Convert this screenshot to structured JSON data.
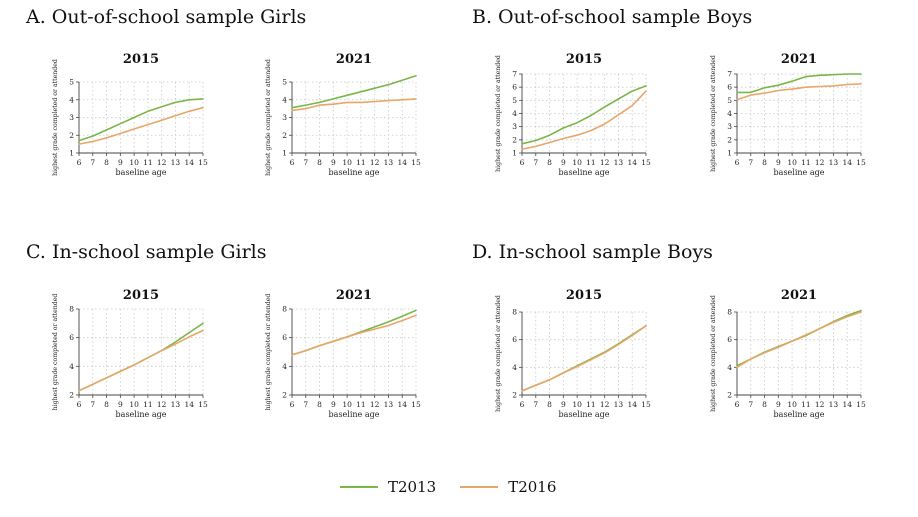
{
  "colors": {
    "T2013": "#7ab648",
    "T2016": "#e8a66a",
    "grid": "#c8c8c8",
    "axis": "#444444"
  },
  "axis_titles": {
    "y": "highest grade completed or attended",
    "x": "baseline age"
  },
  "legend": [
    {
      "label": "T2013",
      "color": "#7ab648"
    },
    {
      "label": "T2016",
      "color": "#e8a66a"
    }
  ],
  "sections": [
    {
      "title": "A. Out-of-school sample Girls"
    },
    {
      "title": "B. Out-of-school sample Boys"
    },
    {
      "title": "C. In-school sample Girls"
    },
    {
      "title": "D. In-school sample Boys"
    }
  ],
  "chart_data": [
    {
      "type": "line",
      "section": "A. Out-of-school sample Girls",
      "title": "2015",
      "xlabel": "baseline age",
      "ylabel": "highest grade completed or attended",
      "x": [
        6,
        7,
        8,
        9,
        10,
        11,
        12,
        13,
        14,
        15
      ],
      "xlim": [
        6,
        15
      ],
      "y_ticks": [
        1,
        2,
        3,
        4,
        5
      ],
      "ylim": [
        1,
        5
      ],
      "grid": true,
      "series": [
        {
          "name": "T2013",
          "values": [
            1.7,
            1.95,
            2.3,
            2.65,
            3.0,
            3.35,
            3.6,
            3.85,
            4.0,
            4.05
          ]
        },
        {
          "name": "T2016",
          "values": [
            1.5,
            1.65,
            1.85,
            2.1,
            2.35,
            2.6,
            2.85,
            3.1,
            3.35,
            3.55
          ]
        }
      ]
    },
    {
      "type": "line",
      "section": "A. Out-of-school sample Girls",
      "title": "2021",
      "xlabel": "baseline age",
      "ylabel": "highest grade completed or attended",
      "x": [
        6,
        7,
        8,
        9,
        10,
        11,
        12,
        13,
        14,
        15
      ],
      "xlim": [
        6,
        15
      ],
      "y_ticks": [
        1,
        2,
        3,
        4,
        5
      ],
      "ylim": [
        1,
        5
      ],
      "grid": true,
      "series": [
        {
          "name": "T2013",
          "values": [
            3.55,
            3.7,
            3.85,
            4.05,
            4.25,
            4.45,
            4.65,
            4.85,
            5.1,
            5.35
          ]
        },
        {
          "name": "T2016",
          "values": [
            3.4,
            3.5,
            3.7,
            3.75,
            3.85,
            3.85,
            3.9,
            3.95,
            4.0,
            4.05
          ]
        }
      ]
    },
    {
      "type": "line",
      "section": "B. Out-of-school sample Boys",
      "title": "2015",
      "xlabel": "baseline age",
      "ylabel": "highest grade completed or attended",
      "x": [
        6,
        7,
        8,
        9,
        10,
        11,
        12,
        13,
        14,
        15
      ],
      "xlim": [
        6,
        15
      ],
      "y_ticks": [
        1,
        2,
        3,
        4,
        5,
        6,
        7
      ],
      "ylim": [
        1,
        7
      ],
      "grid": true,
      "series": [
        {
          "name": "T2013",
          "values": [
            1.7,
            1.95,
            2.35,
            2.9,
            3.3,
            3.85,
            4.5,
            5.1,
            5.7,
            6.1
          ]
        },
        {
          "name": "T2016",
          "values": [
            1.3,
            1.5,
            1.8,
            2.1,
            2.35,
            2.7,
            3.2,
            3.9,
            4.6,
            5.7
          ]
        }
      ]
    },
    {
      "type": "line",
      "section": "B. Out-of-school sample Boys",
      "title": "2021",
      "xlabel": "baseline age",
      "ylabel": "highest grade completed or attended",
      "x": [
        6,
        7,
        8,
        9,
        10,
        11,
        12,
        13,
        14,
        15
      ],
      "xlim": [
        6,
        15
      ],
      "y_ticks": [
        1,
        2,
        3,
        4,
        5,
        6,
        7
      ],
      "ylim": [
        1,
        7
      ],
      "grid": true,
      "series": [
        {
          "name": "T2013",
          "values": [
            5.6,
            5.6,
            5.95,
            6.15,
            6.45,
            6.8,
            6.9,
            6.95,
            7.0,
            7.0
          ]
        },
        {
          "name": "T2016",
          "values": [
            5.05,
            5.4,
            5.55,
            5.75,
            5.85,
            6.0,
            6.05,
            6.1,
            6.2,
            6.25
          ]
        }
      ]
    },
    {
      "type": "line",
      "section": "C. In-school sample Girls",
      "title": "2015",
      "xlabel": "baseline age",
      "ylabel": "highest grade completed or attended",
      "x": [
        6,
        7,
        8,
        9,
        10,
        11,
        12,
        13,
        14,
        15
      ],
      "xlim": [
        6,
        15
      ],
      "y_ticks": [
        2,
        4,
        6,
        8
      ],
      "ylim": [
        2,
        8
      ],
      "grid": true,
      "series": [
        {
          "name": "T2013",
          "values": [
            2.3,
            2.75,
            3.2,
            3.65,
            4.1,
            4.6,
            5.1,
            5.7,
            6.35,
            7.0
          ]
        },
        {
          "name": "T2016",
          "values": [
            2.3,
            2.75,
            3.2,
            3.65,
            4.1,
            4.6,
            5.1,
            5.55,
            6.05,
            6.5
          ]
        }
      ]
    },
    {
      "type": "line",
      "section": "C. In-school sample Girls",
      "title": "2021",
      "xlabel": "baseline age",
      "ylabel": "highest grade completed or attended",
      "x": [
        6,
        7,
        8,
        9,
        10,
        11,
        12,
        13,
        14,
        15
      ],
      "xlim": [
        6,
        15
      ],
      "y_ticks": [
        2,
        4,
        6,
        8
      ],
      "ylim": [
        2,
        8
      ],
      "grid": true,
      "series": [
        {
          "name": "T2013",
          "values": [
            4.8,
            5.1,
            5.45,
            5.75,
            6.05,
            6.4,
            6.75,
            7.1,
            7.5,
            7.9
          ]
        },
        {
          "name": "T2016",
          "values": [
            4.8,
            5.1,
            5.45,
            5.75,
            6.05,
            6.35,
            6.6,
            6.85,
            7.2,
            7.55
          ]
        }
      ]
    },
    {
      "type": "line",
      "section": "D. In-school sample Boys",
      "title": "2015",
      "xlabel": "baseline age",
      "ylabel": "highest grade completed or attended",
      "x": [
        6,
        7,
        8,
        9,
        10,
        11,
        12,
        13,
        14,
        15
      ],
      "xlim": [
        6,
        15
      ],
      "y_ticks": [
        2,
        4,
        6,
        8
      ],
      "ylim": [
        2,
        8
      ],
      "grid": true,
      "series": [
        {
          "name": "T2013",
          "values": [
            2.3,
            2.7,
            3.1,
            3.6,
            4.1,
            4.6,
            5.1,
            5.7,
            6.35,
            7.0
          ]
        },
        {
          "name": "T2016",
          "values": [
            2.3,
            2.7,
            3.1,
            3.6,
            4.05,
            4.55,
            5.05,
            5.65,
            6.3,
            7.0
          ]
        }
      ]
    },
    {
      "type": "line",
      "section": "D. In-school sample Boys",
      "title": "2021",
      "xlabel": "baseline age",
      "ylabel": "highest grade completed or attended",
      "x": [
        6,
        7,
        8,
        9,
        10,
        11,
        12,
        13,
        14,
        15
      ],
      "xlim": [
        6,
        15
      ],
      "y_ticks": [
        2,
        4,
        6,
        8
      ],
      "ylim": [
        2,
        8
      ],
      "grid": true,
      "series": [
        {
          "name": "T2013",
          "values": [
            4.1,
            4.6,
            5.1,
            5.5,
            5.9,
            6.3,
            6.8,
            7.3,
            7.75,
            8.1
          ]
        },
        {
          "name": "T2016",
          "values": [
            4.0,
            4.6,
            5.05,
            5.45,
            5.9,
            6.35,
            6.8,
            7.25,
            7.65,
            8.0
          ]
        }
      ]
    }
  ]
}
